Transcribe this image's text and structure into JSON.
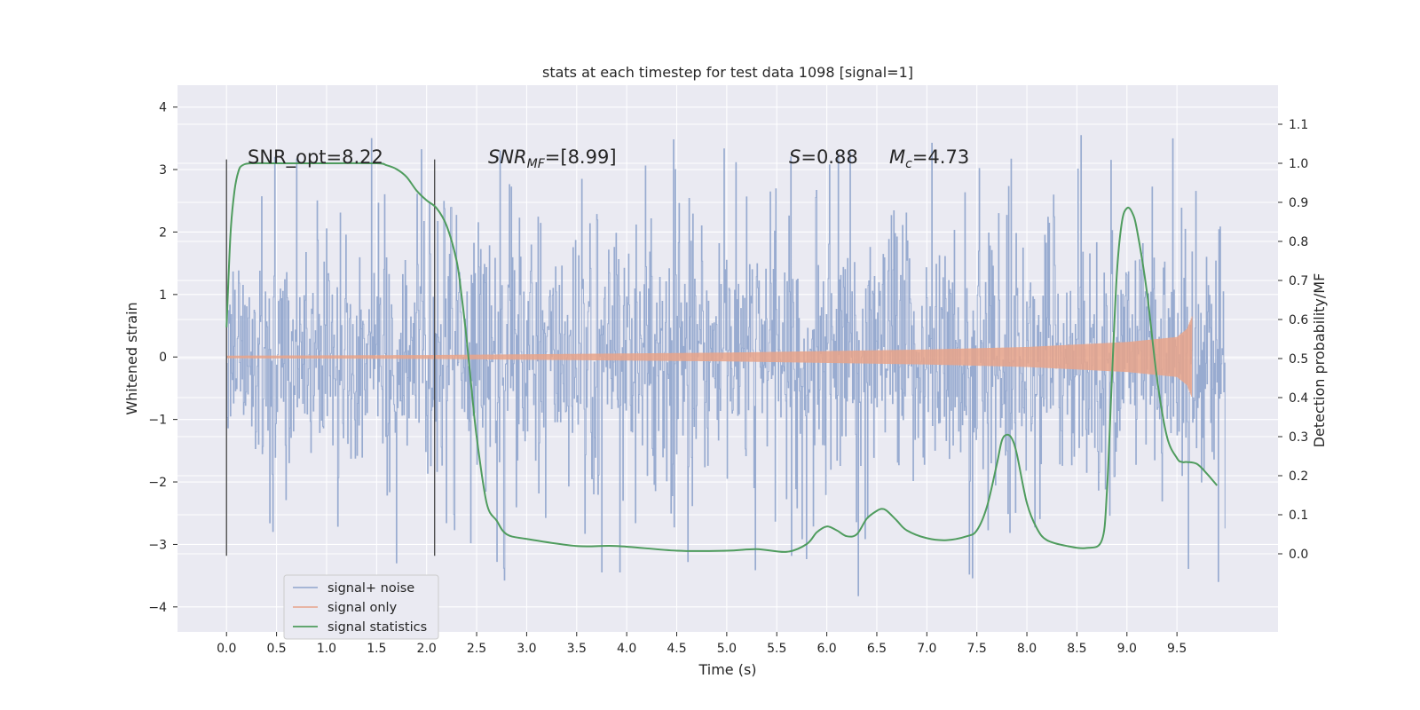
{
  "chart_data": {
    "type": "line",
    "title": "stats at each timestep for test data 1098 [signal=1]",
    "xlabel": "Time (s)",
    "ylabel_left": "Whitened strain",
    "ylabel_right": "Detection probability/MF",
    "xlim": [
      -0.49,
      10.51
    ],
    "ylim_left": [
      -4.4,
      4.35
    ],
    "ylim_right": [
      -0.2,
      1.2
    ],
    "x_ticks": [
      "0.0",
      "0.5",
      "1.0",
      "1.5",
      "2.0",
      "2.5",
      "3.0",
      "3.5",
      "4.0",
      "4.5",
      "5.0",
      "5.5",
      "6.0",
      "6.5",
      "7.0",
      "7.5",
      "8.0",
      "8.5",
      "9.0",
      "9.5"
    ],
    "y_ticks_left": [
      "4",
      "3",
      "2",
      "1",
      "0",
      "−1",
      "−2",
      "−3",
      "−4"
    ],
    "y_ticks_right": [
      "1.1",
      "1.0",
      "0.9",
      "0.8",
      "0.7",
      "0.6",
      "0.5",
      "0.4",
      "0.3",
      "0.2",
      "0.1",
      "0.0"
    ],
    "grid": true,
    "legend_position": "bottom-left",
    "vlines": [
      0.0,
      2.08
    ],
    "annotations": {
      "snr_opt": "SNR_opt=8.22",
      "snr_mf_base": "SNR",
      "snr_mf_sub": "MF",
      "snr_mf_value": "=[8.99]",
      "s_sym": "S",
      "s_value": "=0.88",
      "mc_sym": "M",
      "mc_sub": "c",
      "mc_value": "=4.73"
    },
    "series": [
      {
        "name": "signal+ noise",
        "axis": "left",
        "color": "#8fa4cc",
        "x_range": [
          0.0,
          9.98
        ],
        "description_band": {
          "core_min": -1.3,
          "core_max": 1.3,
          "spike_max": 3.95,
          "spike_min": -4.05
        }
      },
      {
        "name": "signal only",
        "axis": "left",
        "color": "#e8a389",
        "x_range": [
          0.0,
          9.65
        ],
        "envelope": [
          [
            0.0,
            0.02
          ],
          [
            2.0,
            0.03
          ],
          [
            5.0,
            0.07
          ],
          [
            7.0,
            0.12
          ],
          [
            8.0,
            0.16
          ],
          [
            9.0,
            0.24
          ],
          [
            9.5,
            0.32
          ],
          [
            9.6,
            0.45
          ],
          [
            9.65,
            0.65
          ]
        ]
      },
      {
        "name": "signal statistics",
        "axis": "right",
        "color": "#4f9c5e",
        "x": [
          0.0,
          0.04,
          0.08,
          0.12,
          0.16,
          0.25,
          0.5,
          1.0,
          1.5,
          1.6,
          1.7,
          1.8,
          1.9,
          2.0,
          2.1,
          2.2,
          2.3,
          2.35,
          2.4,
          2.45,
          2.5,
          2.6,
          2.7,
          2.8,
          3.0,
          3.5,
          3.9,
          4.5,
          5.0,
          5.3,
          5.6,
          5.8,
          5.9,
          6.0,
          6.1,
          6.2,
          6.3,
          6.4,
          6.5,
          6.55,
          6.6,
          6.7,
          6.8,
          7.0,
          7.2,
          7.4,
          7.5,
          7.6,
          7.7,
          7.75,
          7.8,
          7.85,
          7.9,
          8.0,
          8.1,
          8.2,
          8.4,
          8.6,
          8.75,
          8.8,
          8.85,
          8.9,
          8.95,
          9.0,
          9.05,
          9.1,
          9.2,
          9.3,
          9.4,
          9.5,
          9.55,
          9.6,
          9.7,
          9.8,
          9.9
        ],
        "y": [
          0.58,
          0.82,
          0.93,
          0.98,
          0.995,
          1.0,
          1.0,
          1.0,
          1.0,
          0.995,
          0.985,
          0.965,
          0.93,
          0.905,
          0.885,
          0.84,
          0.75,
          0.66,
          0.55,
          0.42,
          0.3,
          0.13,
          0.085,
          0.05,
          0.038,
          0.02,
          0.02,
          0.008,
          0.008,
          0.012,
          0.005,
          0.025,
          0.055,
          0.07,
          0.06,
          0.045,
          0.05,
          0.09,
          0.11,
          0.115,
          0.11,
          0.085,
          0.06,
          0.04,
          0.035,
          0.045,
          0.06,
          0.12,
          0.23,
          0.29,
          0.305,
          0.295,
          0.255,
          0.13,
          0.065,
          0.035,
          0.02,
          0.015,
          0.035,
          0.16,
          0.45,
          0.72,
          0.85,
          0.885,
          0.875,
          0.83,
          0.67,
          0.45,
          0.3,
          0.245,
          0.235,
          0.235,
          0.23,
          0.205,
          0.175
        ]
      }
    ]
  }
}
